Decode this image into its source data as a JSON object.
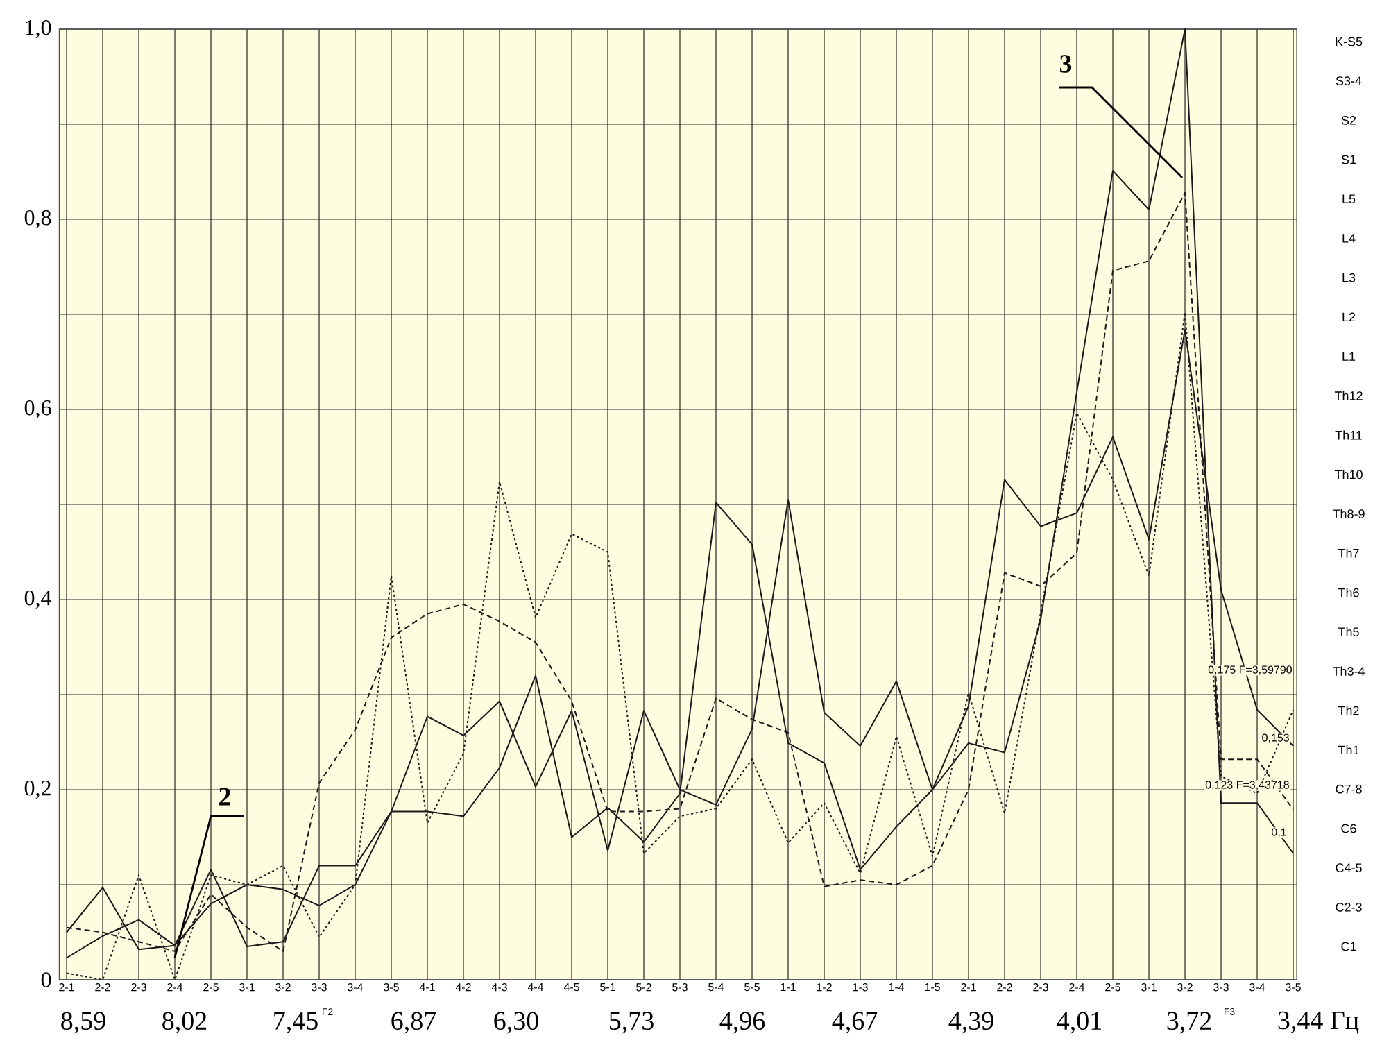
{
  "chart_data": {
    "type": "line",
    "categories": [
      "2-1",
      "2-2",
      "2-3",
      "2-4",
      "2-5",
      "3-1",
      "3-2",
      "3-3",
      "3-4",
      "3-5",
      "4-1",
      "4-2",
      "4-3",
      "4-4",
      "4-5",
      "5-1",
      "5-2",
      "5-3",
      "5-4",
      "5-5",
      "1-1",
      "1-2",
      "1-3",
      "1-4",
      "1-5",
      "2-1",
      "2-2",
      "2-3",
      "2-4",
      "2-5",
      "3-1",
      "3-2",
      "3-3",
      "3-4",
      "3-5"
    ],
    "series": [
      {
        "color": "#1a1a1a",
        "line_style": "solid",
        "values": [
          0.023,
          0.046,
          0.063,
          0.036,
          0.08,
          0.1,
          0.095,
          0.078,
          0.1,
          0.177,
          0.177,
          0.172,
          0.223,
          0.32,
          0.15,
          0.181,
          0.145,
          0.196,
          0.502,
          0.458,
          0.249,
          0.228,
          0.116,
          0.161,
          0.2,
          0.249,
          0.239,
          0.379,
          0.618,
          0.851,
          0.81,
          1.0,
          0.186,
          0.186,
          0.133
        ]
      },
      {
        "color": "#1a1a1a",
        "line_style": "solid",
        "values": [
          0.05,
          0.097,
          0.032,
          0.036,
          0.116,
          0.035,
          0.04,
          0.12,
          0.12,
          0.177,
          0.277,
          0.257,
          0.293,
          0.203,
          0.283,
          0.136,
          0.283,
          0.2,
          0.184,
          0.264,
          0.505,
          0.281,
          0.246,
          0.314,
          0.2,
          0.288,
          0.526,
          0.477,
          0.491,
          0.571,
          0.463,
          0.684,
          0.41,
          0.284,
          0.246
        ]
      },
      {
        "color": "#1a1a1a",
        "line_style": "dashed",
        "values": [
          0.055,
          0.05,
          0.04,
          0.03,
          0.09,
          0.055,
          0.03,
          0.207,
          0.263,
          0.36,
          0.385,
          0.395,
          0.377,
          0.355,
          0.293,
          0.177,
          0.177,
          0.18,
          0.296,
          0.274,
          0.26,
          0.098,
          0.105,
          0.1,
          0.12,
          0.2,
          0.428,
          0.414,
          0.449,
          0.746,
          0.756,
          0.828,
          0.232,
          0.232,
          0.179
        ]
      },
      {
        "color": "#1a1a1a",
        "line_style": "dotted",
        "values": [
          0.007,
          0.0,
          0.11,
          0.0,
          0.11,
          0.1,
          0.12,
          0.045,
          0.1,
          0.425,
          0.165,
          0.238,
          0.524,
          0.381,
          0.469,
          0.45,
          0.133,
          0.172,
          0.18,
          0.232,
          0.144,
          0.186,
          0.112,
          0.256,
          0.13,
          0.302,
          0.175,
          0.386,
          0.596,
          0.526,
          0.425,
          0.702,
          0.214,
          0.196,
          0.284
        ]
      }
    ],
    "ylim": [
      0,
      1
    ],
    "yticks": [
      {
        "value": 0,
        "label": "0"
      },
      {
        "value": 0.1,
        "label": null
      },
      {
        "value": 0.2,
        "label": "0,2"
      },
      {
        "value": 0.3,
        "label": null
      },
      {
        "value": 0.4,
        "label": "0,4"
      },
      {
        "value": 0.5,
        "label": null
      },
      {
        "value": 0.6,
        "label": "0,6"
      },
      {
        "value": 0.7,
        "label": null
      },
      {
        "value": 0.8,
        "label": "0,8"
      },
      {
        "value": 0.9,
        "label": null
      },
      {
        "value": 1.0,
        "label": "1,0"
      }
    ],
    "grid": true,
    "annotations": [
      "8,59",
      "8,02",
      "7,45",
      "6,87",
      "6,30",
      "5,73",
      "4,96",
      "4,67",
      "4,39",
      "4,01",
      "3,72",
      "3,44 Гц",
      "F2",
      "F3",
      "K-S5",
      "S3-4",
      "S2",
      "S1",
      "L5",
      "L4",
      "L3",
      "L2",
      "L1",
      "Th12",
      "Th11",
      "Th10",
      "Th8-9",
      "Th7",
      "Th6",
      "Th5",
      "Th3-4",
      "Th2",
      "Th1",
      "C7-8",
      "C6",
      "C4-5",
      "C2-3",
      "C1",
      "2",
      "3",
      "0,175 F=3,59790",
      "0,153",
      "0,123 F=3,43718",
      "0,1"
    ]
  }
}
